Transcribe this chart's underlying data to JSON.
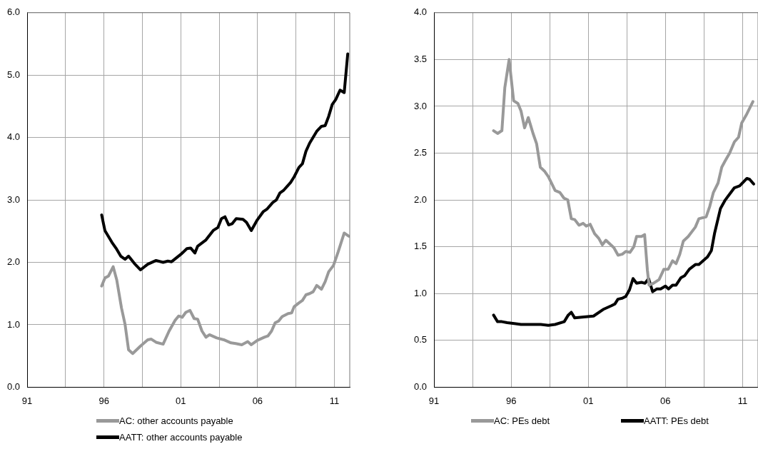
{
  "chart_data": [
    {
      "type": "line",
      "xlim": [
        1991,
        2012
      ],
      "xticks": [
        {
          "value": 1991,
          "label": "91"
        },
        {
          "value": 1993.5,
          "label": null
        },
        {
          "value": 1996,
          "label": "96"
        },
        {
          "value": 1998.5,
          "label": null
        },
        {
          "value": 2001,
          "label": "01"
        },
        {
          "value": 2003.5,
          "label": null
        },
        {
          "value": 2006,
          "label": "06"
        },
        {
          "value": 2008.5,
          "label": null
        },
        {
          "value": 2011,
          "label": "11"
        }
      ],
      "ylim": [
        0,
        6
      ],
      "yticks": [
        {
          "value": 0,
          "label": "0.0"
        },
        {
          "value": 1,
          "label": "1.0"
        },
        {
          "value": 2,
          "label": "2.0"
        },
        {
          "value": 3,
          "label": "3.0"
        },
        {
          "value": 4,
          "label": "4.0"
        },
        {
          "value": 5,
          "label": "5.0"
        },
        {
          "value": 6,
          "label": "6.0"
        }
      ],
      "grid": true,
      "legend": "bottom",
      "marker": "none",
      "series": [
        {
          "name": "AC: other accounts payable",
          "color": "#999999",
          "x": [
            1995.85,
            1996.06,
            1996.29,
            1996.6,
            1996.83,
            1997.14,
            1997.37,
            1997.6,
            1997.87,
            1998.38,
            1998.85,
            1999.08,
            1999.39,
            1999.85,
            2000.24,
            2000.63,
            2000.86,
            2001.09,
            2001.33,
            2001.6,
            2001.87,
            2002.1,
            2002.38,
            2002.64,
            2002.87,
            2003.34,
            2003.8,
            2004.27,
            2004.58,
            2004.97,
            2005.36,
            2005.59,
            2005.98,
            2006.44,
            2006.67,
            2006.91,
            2007.14,
            2007.37,
            2007.6,
            2007.99,
            2008.22,
            2008.38,
            2008.69,
            2008.92,
            2009.15,
            2009.39,
            2009.62,
            2009.85,
            2010.16,
            2010.4,
            2010.63,
            2010.94,
            2011.25,
            2011.64,
            2011.94
          ],
          "values": [
            1.62,
            1.75,
            1.78,
            1.93,
            1.72,
            1.27,
            1.01,
            0.6,
            0.54,
            0.66,
            0.76,
            0.77,
            0.72,
            0.69,
            0.9,
            1.07,
            1.14,
            1.12,
            1.2,
            1.23,
            1.1,
            1.09,
            0.9,
            0.8,
            0.84,
            0.79,
            0.76,
            0.71,
            0.7,
            0.68,
            0.73,
            0.68,
            0.75,
            0.8,
            0.82,
            0.9,
            1.03,
            1.06,
            1.13,
            1.18,
            1.19,
            1.29,
            1.35,
            1.39,
            1.48,
            1.5,
            1.53,
            1.63,
            1.57,
            1.69,
            1.85,
            1.95,
            2.17,
            2.47,
            2.42
          ]
        },
        {
          "name": "AATT: other accounts payable",
          "color": "#000000",
          "x": [
            1995.85,
            1996.06,
            1996.52,
            1996.83,
            1997.09,
            1997.37,
            1997.6,
            1997.99,
            1998.38,
            1998.85,
            1999.39,
            1999.85,
            2000.16,
            2000.4,
            2001.01,
            2001.4,
            2001.64,
            2001.92,
            2002.1,
            2002.64,
            2003.11,
            2003.42,
            2003.65,
            2003.88,
            2004.12,
            2004.35,
            2004.61,
            2005.05,
            2005.28,
            2005.59,
            2005.98,
            2006.36,
            2006.6,
            2006.99,
            2007.22,
            2007.45,
            2007.68,
            2008.15,
            2008.38,
            2008.69,
            2008.92,
            2009.15,
            2009.39,
            2009.85,
            2010.16,
            2010.4,
            2010.63,
            2010.86,
            2011.09,
            2011.37,
            2011.64,
            2011.87
          ],
          "values": [
            2.76,
            2.51,
            2.32,
            2.21,
            2.1,
            2.05,
            2.1,
            1.98,
            1.88,
            1.97,
            2.03,
            2.0,
            2.02,
            2.01,
            2.13,
            2.22,
            2.23,
            2.15,
            2.26,
            2.36,
            2.51,
            2.56,
            2.7,
            2.73,
            2.6,
            2.62,
            2.7,
            2.69,
            2.64,
            2.51,
            2.68,
            2.81,
            2.85,
            2.96,
            3.0,
            3.11,
            3.15,
            3.28,
            3.37,
            3.52,
            3.58,
            3.78,
            3.91,
            4.1,
            4.18,
            4.19,
            4.34,
            4.53,
            4.61,
            4.76,
            4.72,
            5.34
          ]
        }
      ]
    },
    {
      "type": "line",
      "xlim": [
        1991,
        2012
      ],
      "xticks": [
        {
          "value": 1991,
          "label": "91"
        },
        {
          "value": 1993.5,
          "label": null
        },
        {
          "value": 1996,
          "label": "96"
        },
        {
          "value": 1998.5,
          "label": null
        },
        {
          "value": 2001,
          "label": "01"
        },
        {
          "value": 2003.5,
          "label": null
        },
        {
          "value": 2006,
          "label": "06"
        },
        {
          "value": 2008.5,
          "label": null
        },
        {
          "value": 2011,
          "label": "11"
        }
      ],
      "ylim": [
        0,
        4
      ],
      "yticks": [
        {
          "value": 0,
          "label": "0.0"
        },
        {
          "value": 0.5,
          "label": "0.5"
        },
        {
          "value": 1,
          "label": "1.0"
        },
        {
          "value": 1.5,
          "label": "1.5"
        },
        {
          "value": 2,
          "label": "2.0"
        },
        {
          "value": 2.5,
          "label": "2.5"
        },
        {
          "value": 3,
          "label": "3.0"
        },
        {
          "value": 3.5,
          "label": "3.5"
        },
        {
          "value": 4,
          "label": "4.0"
        }
      ],
      "grid": true,
      "legend": "bottom",
      "marker": "none",
      "series": [
        {
          "name": "AC: PEs debt",
          "color": "#999999",
          "x": [
            1994.86,
            1995.12,
            1995.4,
            1995.59,
            1995.87,
            1996.16,
            1996.44,
            1996.64,
            1996.87,
            1997.11,
            1997.42,
            1997.65,
            1997.89,
            1998.15,
            1998.41,
            1998.85,
            1999.16,
            1999.42,
            1999.67,
            1999.9,
            2000.12,
            2000.4,
            2000.67,
            2000.87,
            2001.12,
            2001.41,
            2001.68,
            2001.91,
            2002.14,
            2002.66,
            2002.93,
            2003.2,
            2003.43,
            2003.7,
            2003.95,
            2004.13,
            2004.45,
            2004.65,
            2004.83,
            2004.94,
            2005.22,
            2005.59,
            2005.9,
            2006.18,
            2006.46,
            2006.69,
            2006.93,
            2007.16,
            2007.48,
            2007.94,
            2008.17,
            2008.64,
            2008.87,
            2009.11,
            2009.41,
            2009.65,
            2009.88,
            2010.16,
            2010.47,
            2010.74,
            2010.94,
            2011.28,
            2011.67
          ],
          "values": [
            2.74,
            2.71,
            2.74,
            3.2,
            3.5,
            3.06,
            3.03,
            2.95,
            2.77,
            2.88,
            2.71,
            2.6,
            2.35,
            2.31,
            2.25,
            2.1,
            2.08,
            2.02,
            2.0,
            1.8,
            1.79,
            1.73,
            1.75,
            1.72,
            1.74,
            1.64,
            1.59,
            1.52,
            1.57,
            1.49,
            1.41,
            1.42,
            1.45,
            1.44,
            1.5,
            1.61,
            1.61,
            1.63,
            1.25,
            1.09,
            1.11,
            1.15,
            1.26,
            1.26,
            1.35,
            1.32,
            1.42,
            1.56,
            1.61,
            1.71,
            1.8,
            1.82,
            1.93,
            2.08,
            2.18,
            2.35,
            2.42,
            2.5,
            2.62,
            2.67,
            2.82,
            2.92,
            3.05
          ]
        },
        {
          "name": "AATT: PEs debt",
          "color": "#000000",
          "x": [
            1994.86,
            1995.12,
            1995.4,
            1995.74,
            1996.21,
            1996.64,
            1997.29,
            1997.92,
            1998.41,
            1998.85,
            1999.44,
            1999.7,
            1999.9,
            2000.12,
            2000.72,
            2001.34,
            2001.96,
            2002.5,
            2002.73,
            2002.92,
            2003.2,
            2003.43,
            2003.67,
            2003.9,
            2004.13,
            2004.45,
            2004.68,
            2004.91,
            2005.17,
            2005.45,
            2005.69,
            2006.0,
            2006.2,
            2006.46,
            2006.69,
            2007.01,
            2007.24,
            2007.55,
            2007.94,
            2008.17,
            2008.72,
            2008.98,
            2009.18,
            2009.57,
            2009.88,
            2010.47,
            2010.81,
            2011.28,
            2011.46,
            2011.72
          ],
          "values": [
            0.77,
            0.7,
            0.7,
            0.69,
            0.68,
            0.67,
            0.67,
            0.67,
            0.66,
            0.67,
            0.7,
            0.77,
            0.8,
            0.74,
            0.75,
            0.76,
            0.83,
            0.87,
            0.89,
            0.94,
            0.95,
            0.97,
            1.04,
            1.16,
            1.11,
            1.12,
            1.11,
            1.16,
            1.02,
            1.05,
            1.05,
            1.08,
            1.05,
            1.09,
            1.09,
            1.17,
            1.19,
            1.26,
            1.31,
            1.31,
            1.39,
            1.46,
            1.64,
            1.91,
            2.0,
            2.13,
            2.15,
            2.23,
            2.22,
            2.17
          ]
        }
      ]
    }
  ]
}
